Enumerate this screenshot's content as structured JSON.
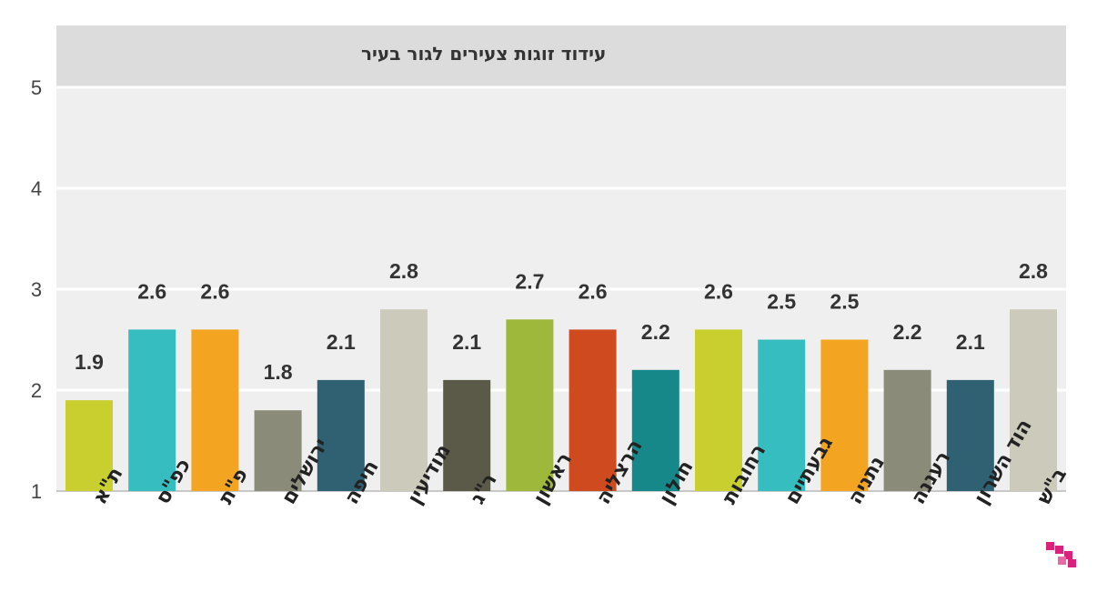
{
  "chart_data": {
    "type": "bar",
    "title": "עידוד זוגות צעירים לגור בעיר",
    "xlabel": "",
    "ylabel": "",
    "ylim": [
      1,
      5
    ],
    "yticks": [
      1,
      2,
      3,
      4,
      5
    ],
    "grid": true,
    "legend": "none",
    "categories": [
      "ת\"א",
      "כפ\"ס",
      "פ\"ת",
      "ירושלים",
      "חיפה",
      "מודיעין",
      "ר\"ג",
      "ראשון",
      "הרצליה",
      "חולון",
      "רחובות",
      "גבעתיים",
      "נתניה",
      "רעננה",
      "הוד השרון",
      "ב\"ש"
    ],
    "values": [
      1.9,
      2.6,
      2.6,
      1.8,
      2.1,
      2.8,
      2.1,
      2.7,
      2.6,
      2.2,
      2.6,
      2.5,
      2.5,
      2.2,
      2.1,
      2.8
    ],
    "value_labels": [
      "1.9",
      "2.6",
      "2.6",
      "1.8",
      "2.1",
      "2.8",
      "2.1",
      "2.7",
      "2.6",
      "2.2",
      "2.6",
      "2.5",
      "2.5",
      "2.2",
      "2.1",
      "2.8"
    ],
    "colors": [
      "#c8cf2e",
      "#35bdc0",
      "#f3a522",
      "#8b8b7a",
      "#2f6172",
      "#cbcabb",
      "#5b5a48",
      "#9db83a",
      "#d04a1f",
      "#17888a",
      "#c8cf2e",
      "#35bdc0",
      "#f3a522",
      "#8b8b7a",
      "#2f6172",
      "#cbcabb"
    ],
    "colors_meta": {
      "plot_background": "#efefef",
      "title_band": "#dcdcdc",
      "gridline": "#ffffff",
      "axis_line": "#c8c8c8",
      "watermark": "#d9237a"
    }
  }
}
